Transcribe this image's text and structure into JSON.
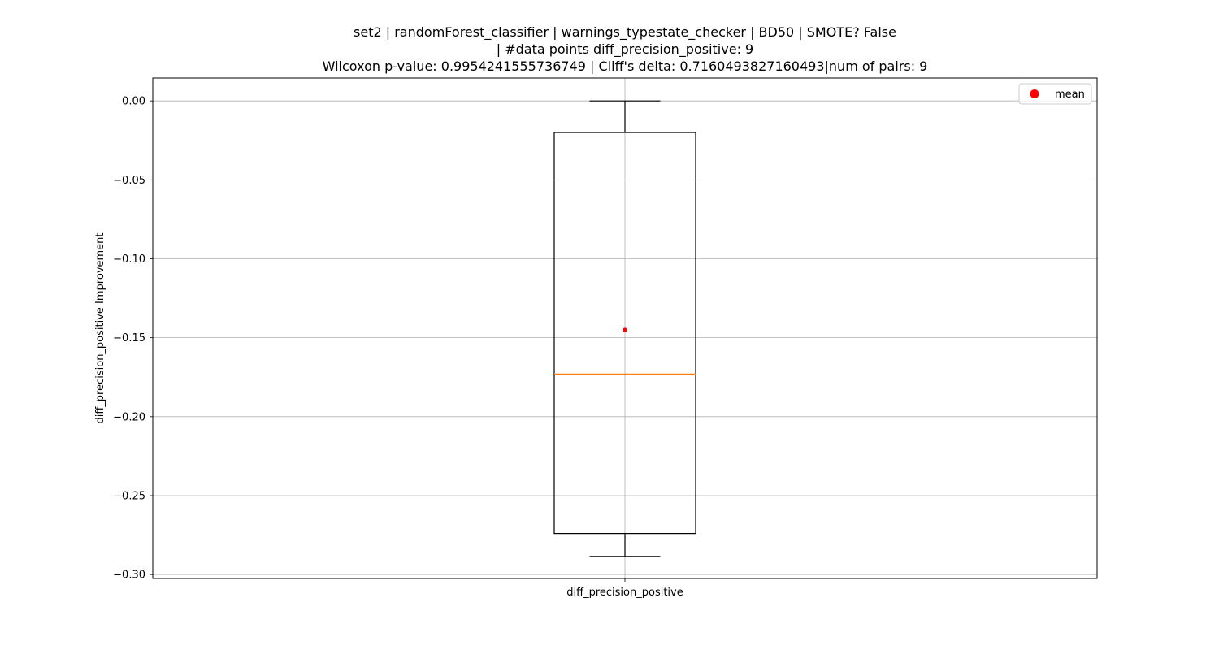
{
  "chart_data": {
    "type": "box",
    "title_lines": [
      "set2 | randomForest_classifier | warnings_typestate_checker | BD50 | SMOTE? False",
      "| #data points diff_precision_positive: 9",
      "Wilcoxon p-value: 0.9954241555736749 | Cliff's delta: 0.7160493827160493|num of pairs: 9"
    ],
    "xlabel": "",
    "ylabel": "diff_precision_positive Improvement",
    "categories": [
      "diff_precision_positive"
    ],
    "ylim": [
      -0.3025,
      0.0145
    ],
    "yticks": [
      0.0,
      -0.05,
      -0.1,
      -0.15,
      -0.2,
      -0.25,
      -0.3
    ],
    "ytick_labels": [
      "0.00",
      "−0.05",
      "−0.10",
      "−0.15",
      "−0.20",
      "−0.25",
      "−0.30"
    ],
    "grid": true,
    "boxes": [
      {
        "category": "diff_precision_positive",
        "whisker_high": 0.0,
        "q3": -0.02,
        "median": -0.173,
        "q1": -0.274,
        "whisker_low": -0.2885,
        "mean": -0.145
      }
    ],
    "legend": {
      "placement": "top-right",
      "entries": [
        {
          "label": "mean",
          "color": "#ff0000"
        }
      ]
    },
    "colors": {
      "box": "#000000",
      "median": "#ff7f0e",
      "mean": "#ff0000",
      "grid": "#b0b0b0"
    }
  }
}
